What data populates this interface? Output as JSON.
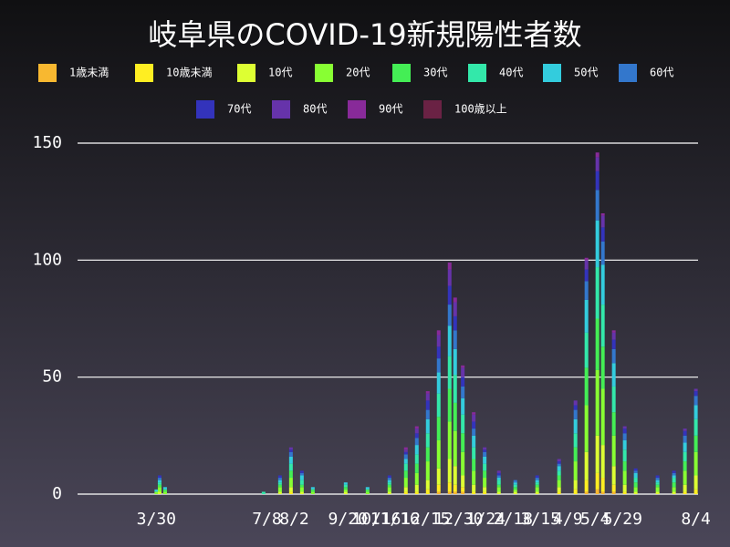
{
  "chart_data": {
    "type": "stacked_bar",
    "title": "岐阜県のCOVID-19新規陽性者数",
    "x": [
      60,
      72,
      75,
      80,
      100,
      170,
      185,
      195,
      205,
      215,
      245,
      265,
      285,
      300,
      310,
      320,
      330,
      340,
      345,
      352,
      362,
      372,
      385,
      400,
      420,
      440,
      455,
      465,
      475,
      480,
      490,
      500,
      510,
      530,
      545,
      555,
      565
    ],
    "xlim": [
      0,
      567
    ],
    "xticks": [
      {
        "value": 72,
        "label": "3/30"
      },
      {
        "value": 173,
        "label": "7/8"
      },
      {
        "value": 198,
        "label": "8/2"
      },
      {
        "value": 247,
        "label": "9/20"
      },
      {
        "value": 273,
        "label": "10/16"
      },
      {
        "value": 290,
        "label": "11/16"
      },
      {
        "value": 318,
        "label": "12/15"
      },
      {
        "value": 348,
        "label": "12/30"
      },
      {
        "value": 373,
        "label": "1/24"
      },
      {
        "value": 398,
        "label": "2/18"
      },
      {
        "value": 423,
        "label": "3/15"
      },
      {
        "value": 448,
        "label": "4/9"
      },
      {
        "value": 473,
        "label": "5/4"
      },
      {
        "value": 498,
        "label": "5/29"
      },
      {
        "value": 565,
        "label": "8/4"
      }
    ],
    "ylim": [
      0,
      150
    ],
    "yticks": [
      0,
      50,
      100,
      150
    ],
    "grid": true,
    "series": [
      {
        "name": "1歳未満",
        "color": "#f8b830",
        "values": [
          0,
          0,
          0,
          0,
          0,
          0,
          0,
          0,
          0,
          0,
          0,
          0,
          0,
          0,
          0,
          0,
          1,
          1,
          1,
          1,
          0,
          0,
          0,
          0,
          0,
          0,
          0,
          1,
          2,
          1,
          1,
          0,
          0,
          0,
          0,
          0,
          0
        ]
      },
      {
        "name": "10歳未満",
        "color": "#ffee22",
        "values": [
          0,
          0,
          0,
          0,
          0,
          0,
          0,
          1,
          0,
          0,
          0,
          0,
          0,
          1,
          1,
          2,
          3,
          4,
          3,
          2,
          1,
          1,
          0,
          0,
          0,
          1,
          2,
          5,
          7,
          6,
          3,
          1,
          0,
          0,
          0,
          1,
          2
        ]
      },
      {
        "name": "10代",
        "color": "#ddff33",
        "values": [
          0,
          0,
          1,
          0,
          0,
          0,
          1,
          2,
          1,
          0,
          1,
          0,
          1,
          2,
          3,
          4,
          7,
          10,
          8,
          5,
          3,
          2,
          1,
          1,
          1,
          2,
          4,
          12,
          16,
          14,
          8,
          3,
          1,
          1,
          1,
          3,
          6
        ]
      },
      {
        "name": "20代",
        "color": "#88ff33",
        "values": [
          0,
          1,
          2,
          1,
          0,
          0,
          2,
          4,
          2,
          1,
          1,
          1,
          2,
          4,
          5,
          8,
          12,
          16,
          15,
          10,
          6,
          4,
          2,
          1,
          2,
          3,
          8,
          20,
          28,
          24,
          13,
          6,
          2,
          2,
          2,
          6,
          10
        ]
      },
      {
        "name": "30代",
        "color": "#44ee55",
        "values": [
          0,
          0,
          1,
          1,
          0,
          0,
          1,
          3,
          1,
          1,
          1,
          1,
          1,
          3,
          4,
          6,
          10,
          14,
          12,
          8,
          5,
          3,
          1,
          1,
          1,
          2,
          6,
          16,
          22,
          18,
          10,
          4,
          2,
          1,
          2,
          4,
          7
        ]
      },
      {
        "name": "40代",
        "color": "#33e8aa",
        "values": [
          0,
          0,
          1,
          0,
          0,
          1,
          1,
          3,
          2,
          0,
          1,
          0,
          1,
          3,
          4,
          6,
          10,
          14,
          12,
          8,
          5,
          3,
          2,
          1,
          1,
          2,
          6,
          15,
          22,
          18,
          11,
          5,
          2,
          1,
          2,
          4,
          7
        ]
      },
      {
        "name": "50代",
        "color": "#33ccdd",
        "values": [
          0,
          1,
          1,
          1,
          0,
          0,
          1,
          3,
          2,
          1,
          1,
          1,
          1,
          2,
          4,
          6,
          9,
          13,
          11,
          7,
          5,
          3,
          1,
          1,
          1,
          2,
          6,
          14,
          20,
          17,
          10,
          4,
          2,
          1,
          1,
          4,
          6
        ]
      },
      {
        "name": "60代",
        "color": "#3377cc",
        "values": [
          0,
          0,
          1,
          0,
          0,
          0,
          1,
          2,
          1,
          0,
          0,
          0,
          1,
          2,
          3,
          4,
          6,
          9,
          8,
          5,
          3,
          2,
          1,
          1,
          1,
          1,
          4,
          8,
          13,
          10,
          6,
          3,
          1,
          1,
          1,
          3,
          4
        ]
      },
      {
        "name": "70代",
        "color": "#3333bb",
        "values": [
          0,
          0,
          1,
          0,
          0,
          0,
          1,
          1,
          1,
          0,
          0,
          0,
          1,
          1,
          2,
          4,
          5,
          8,
          6,
          4,
          3,
          1,
          1,
          0,
          1,
          1,
          2,
          5,
          8,
          6,
          4,
          2,
          1,
          1,
          1,
          2,
          2
        ]
      },
      {
        "name": "80代",
        "color": "#6633aa",
        "values": [
          0,
          0,
          0,
          0,
          0,
          0,
          0,
          1,
          0,
          0,
          0,
          0,
          0,
          1,
          2,
          3,
          5,
          7,
          6,
          4,
          3,
          1,
          1,
          0,
          0,
          1,
          2,
          4,
          6,
          5,
          3,
          1,
          0,
          0,
          0,
          1,
          1
        ]
      },
      {
        "name": "90代",
        "color": "#882a99",
        "values": [
          0,
          0,
          0,
          0,
          0,
          0,
          0,
          0,
          0,
          0,
          0,
          0,
          0,
          1,
          1,
          1,
          2,
          3,
          2,
          1,
          1,
          0,
          0,
          0,
          0,
          0,
          0,
          1,
          2,
          1,
          1,
          0,
          0,
          0,
          0,
          0,
          0
        ]
      },
      {
        "name": "100歳以上",
        "color": "#6a2244",
        "values": [
          0,
          0,
          0,
          0,
          0,
          0,
          0,
          0,
          0,
          0,
          0,
          0,
          0,
          0,
          0,
          0,
          0,
          0,
          0,
          0,
          0,
          0,
          0,
          0,
          0,
          0,
          0,
          0,
          0,
          0,
          0,
          0,
          0,
          0,
          0,
          0,
          0
        ]
      }
    ]
  }
}
